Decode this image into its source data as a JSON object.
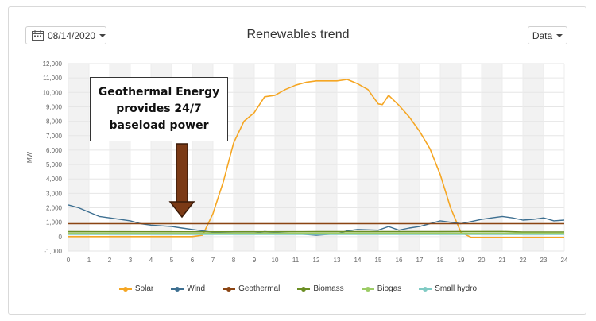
{
  "header": {
    "date_label": "08/14/2020",
    "data_label": "Data",
    "title": "Renewables trend"
  },
  "annotation": {
    "text": "Geothermal Energy provides 24/7 baseload power",
    "box_color": "#ffffff",
    "arrow_color": "#7b3a16"
  },
  "chart_data": {
    "type": "line",
    "title": "Renewables trend",
    "xlabel": "",
    "ylabel": "MW",
    "xlim": [
      0,
      24
    ],
    "ylim": [
      -1000,
      12000
    ],
    "x_ticks": [
      0,
      1,
      2,
      3,
      4,
      5,
      6,
      7,
      8,
      9,
      10,
      11,
      12,
      13,
      14,
      15,
      16,
      17,
      18,
      19,
      20,
      21,
      22,
      23,
      24
    ],
    "y_ticks": [
      -1000,
      0,
      1000,
      2000,
      3000,
      4000,
      5000,
      6000,
      7000,
      8000,
      9000,
      10000,
      11000,
      12000
    ],
    "y_tick_labels": [
      "-1,000",
      "0",
      "1,000",
      "2,000",
      "3,000",
      "4,000",
      "5,000",
      "6,000",
      "7,000",
      "8,000",
      "9,000",
      "10,000",
      "11,000",
      "12,000"
    ],
    "grid": true,
    "alternating_hour_bands": true,
    "legend_position": "bottom",
    "series": [
      {
        "name": "Solar",
        "color": "#f5a623",
        "points": [
          [
            0,
            0
          ],
          [
            1,
            0
          ],
          [
            2,
            0
          ],
          [
            3,
            0
          ],
          [
            4,
            0
          ],
          [
            5,
            0
          ],
          [
            6,
            0
          ],
          [
            6.5,
            100
          ],
          [
            7,
            1600
          ],
          [
            7.5,
            3800
          ],
          [
            8,
            6500
          ],
          [
            8.5,
            8000
          ],
          [
            9,
            8600
          ],
          [
            9.5,
            9700
          ],
          [
            10,
            9800
          ],
          [
            10.5,
            10200
          ],
          [
            11,
            10500
          ],
          [
            11.5,
            10700
          ],
          [
            12,
            10800
          ],
          [
            12.5,
            10800
          ],
          [
            13,
            10800
          ],
          [
            13.5,
            10900
          ],
          [
            14,
            10600
          ],
          [
            14.5,
            10200
          ],
          [
            15,
            9200
          ],
          [
            15.2,
            9150
          ],
          [
            15.5,
            9800
          ],
          [
            16,
            9100
          ],
          [
            16.5,
            8300
          ],
          [
            17,
            7300
          ],
          [
            17.5,
            6100
          ],
          [
            18,
            4300
          ],
          [
            18.5,
            2000
          ],
          [
            19,
            300
          ],
          [
            19.5,
            -50
          ],
          [
            20,
            -50
          ],
          [
            21,
            -50
          ],
          [
            22,
            -50
          ],
          [
            23,
            -50
          ],
          [
            24,
            -50
          ]
        ]
      },
      {
        "name": "Wind",
        "color": "#3d6f91",
        "points": [
          [
            0,
            2200
          ],
          [
            0.5,
            2000
          ],
          [
            1,
            1700
          ],
          [
            1.5,
            1400
          ],
          [
            2,
            1300
          ],
          [
            2.5,
            1200
          ],
          [
            3,
            1100
          ],
          [
            3.5,
            900
          ],
          [
            4,
            800
          ],
          [
            4.5,
            750
          ],
          [
            5,
            700
          ],
          [
            5.5,
            600
          ],
          [
            6,
            500
          ],
          [
            6.5,
            400
          ],
          [
            7,
            300
          ],
          [
            8,
            250
          ],
          [
            9,
            250
          ],
          [
            9.5,
            350
          ],
          [
            10,
            300
          ],
          [
            11,
            200
          ],
          [
            12,
            100
          ],
          [
            13,
            200
          ],
          [
            13.5,
            400
          ],
          [
            14,
            500
          ],
          [
            15,
            450
          ],
          [
            15.5,
            700
          ],
          [
            16,
            450
          ],
          [
            16.5,
            600
          ],
          [
            17,
            700
          ],
          [
            18,
            1100
          ],
          [
            18.5,
            1000
          ],
          [
            19,
            900
          ],
          [
            19.5,
            1050
          ],
          [
            20,
            1200
          ],
          [
            20.5,
            1300
          ],
          [
            21,
            1400
          ],
          [
            21.5,
            1300
          ],
          [
            22,
            1150
          ],
          [
            22.5,
            1200
          ],
          [
            23,
            1300
          ],
          [
            23.5,
            1100
          ],
          [
            24,
            1150
          ]
        ]
      },
      {
        "name": "Geothermal",
        "color": "#8b4513",
        "points": [
          [
            0,
            900
          ],
          [
            6,
            900
          ],
          [
            12,
            900
          ],
          [
            18,
            900
          ],
          [
            24,
            900
          ]
        ]
      },
      {
        "name": "Biomass",
        "color": "#6b8e23",
        "points": [
          [
            0,
            350
          ],
          [
            6,
            340
          ],
          [
            12,
            350
          ],
          [
            18,
            350
          ],
          [
            21,
            360
          ],
          [
            22,
            320
          ],
          [
            24,
            330
          ]
        ]
      },
      {
        "name": "Biogas",
        "color": "#9ccc65",
        "points": [
          [
            0,
            250
          ],
          [
            6,
            240
          ],
          [
            12,
            250
          ],
          [
            18,
            250
          ],
          [
            24,
            250
          ]
        ]
      },
      {
        "name": "Small hydro",
        "color": "#80cbc4",
        "points": [
          [
            0,
            150
          ],
          [
            6,
            150
          ],
          [
            12,
            150
          ],
          [
            18,
            150
          ],
          [
            24,
            150
          ]
        ]
      }
    ]
  }
}
